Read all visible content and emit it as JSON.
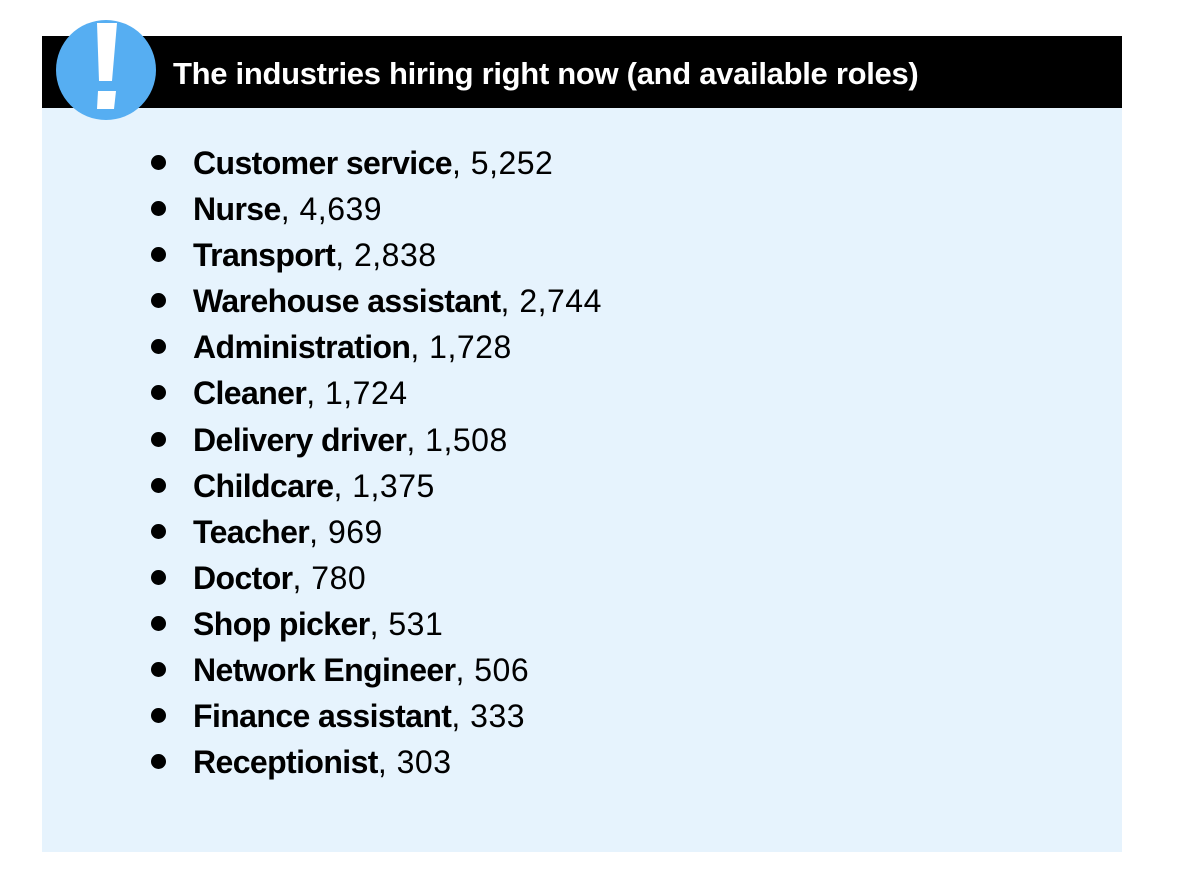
{
  "header": {
    "title": "The industries hiring right now (and available roles)",
    "icon": "exclamation-icon",
    "icon_color": "#56aef2"
  },
  "colors": {
    "header_background": "#000000",
    "panel_background": "#e6f3fd",
    "text": "#000000"
  },
  "roles": [
    {
      "name": "Customer service",
      "count": ", 5,252"
    },
    {
      "name": "Nurse",
      "count": ", 4,639"
    },
    {
      "name": "Transport",
      "count": ", 2,838"
    },
    {
      "name": "Warehouse assistant",
      "count": ", 2,744"
    },
    {
      "name": "Administration",
      "count": ", 1,728"
    },
    {
      "name": "Cleaner",
      "count": ", 1,724"
    },
    {
      "name": "Delivery driver",
      "count": ", 1,508"
    },
    {
      "name": "Childcare",
      "count": ", 1,375"
    },
    {
      "name": "Teacher",
      "count": ", 969"
    },
    {
      "name": "Doctor",
      "count": ", 780"
    },
    {
      "name": "Shop picker",
      "count": ", 531"
    },
    {
      "name": "Network Engineer",
      "count": ", 506"
    },
    {
      "name": "Finance assistant",
      "count": ", 333"
    },
    {
      "name": "Receptionist",
      "count": ", 303"
    }
  ]
}
